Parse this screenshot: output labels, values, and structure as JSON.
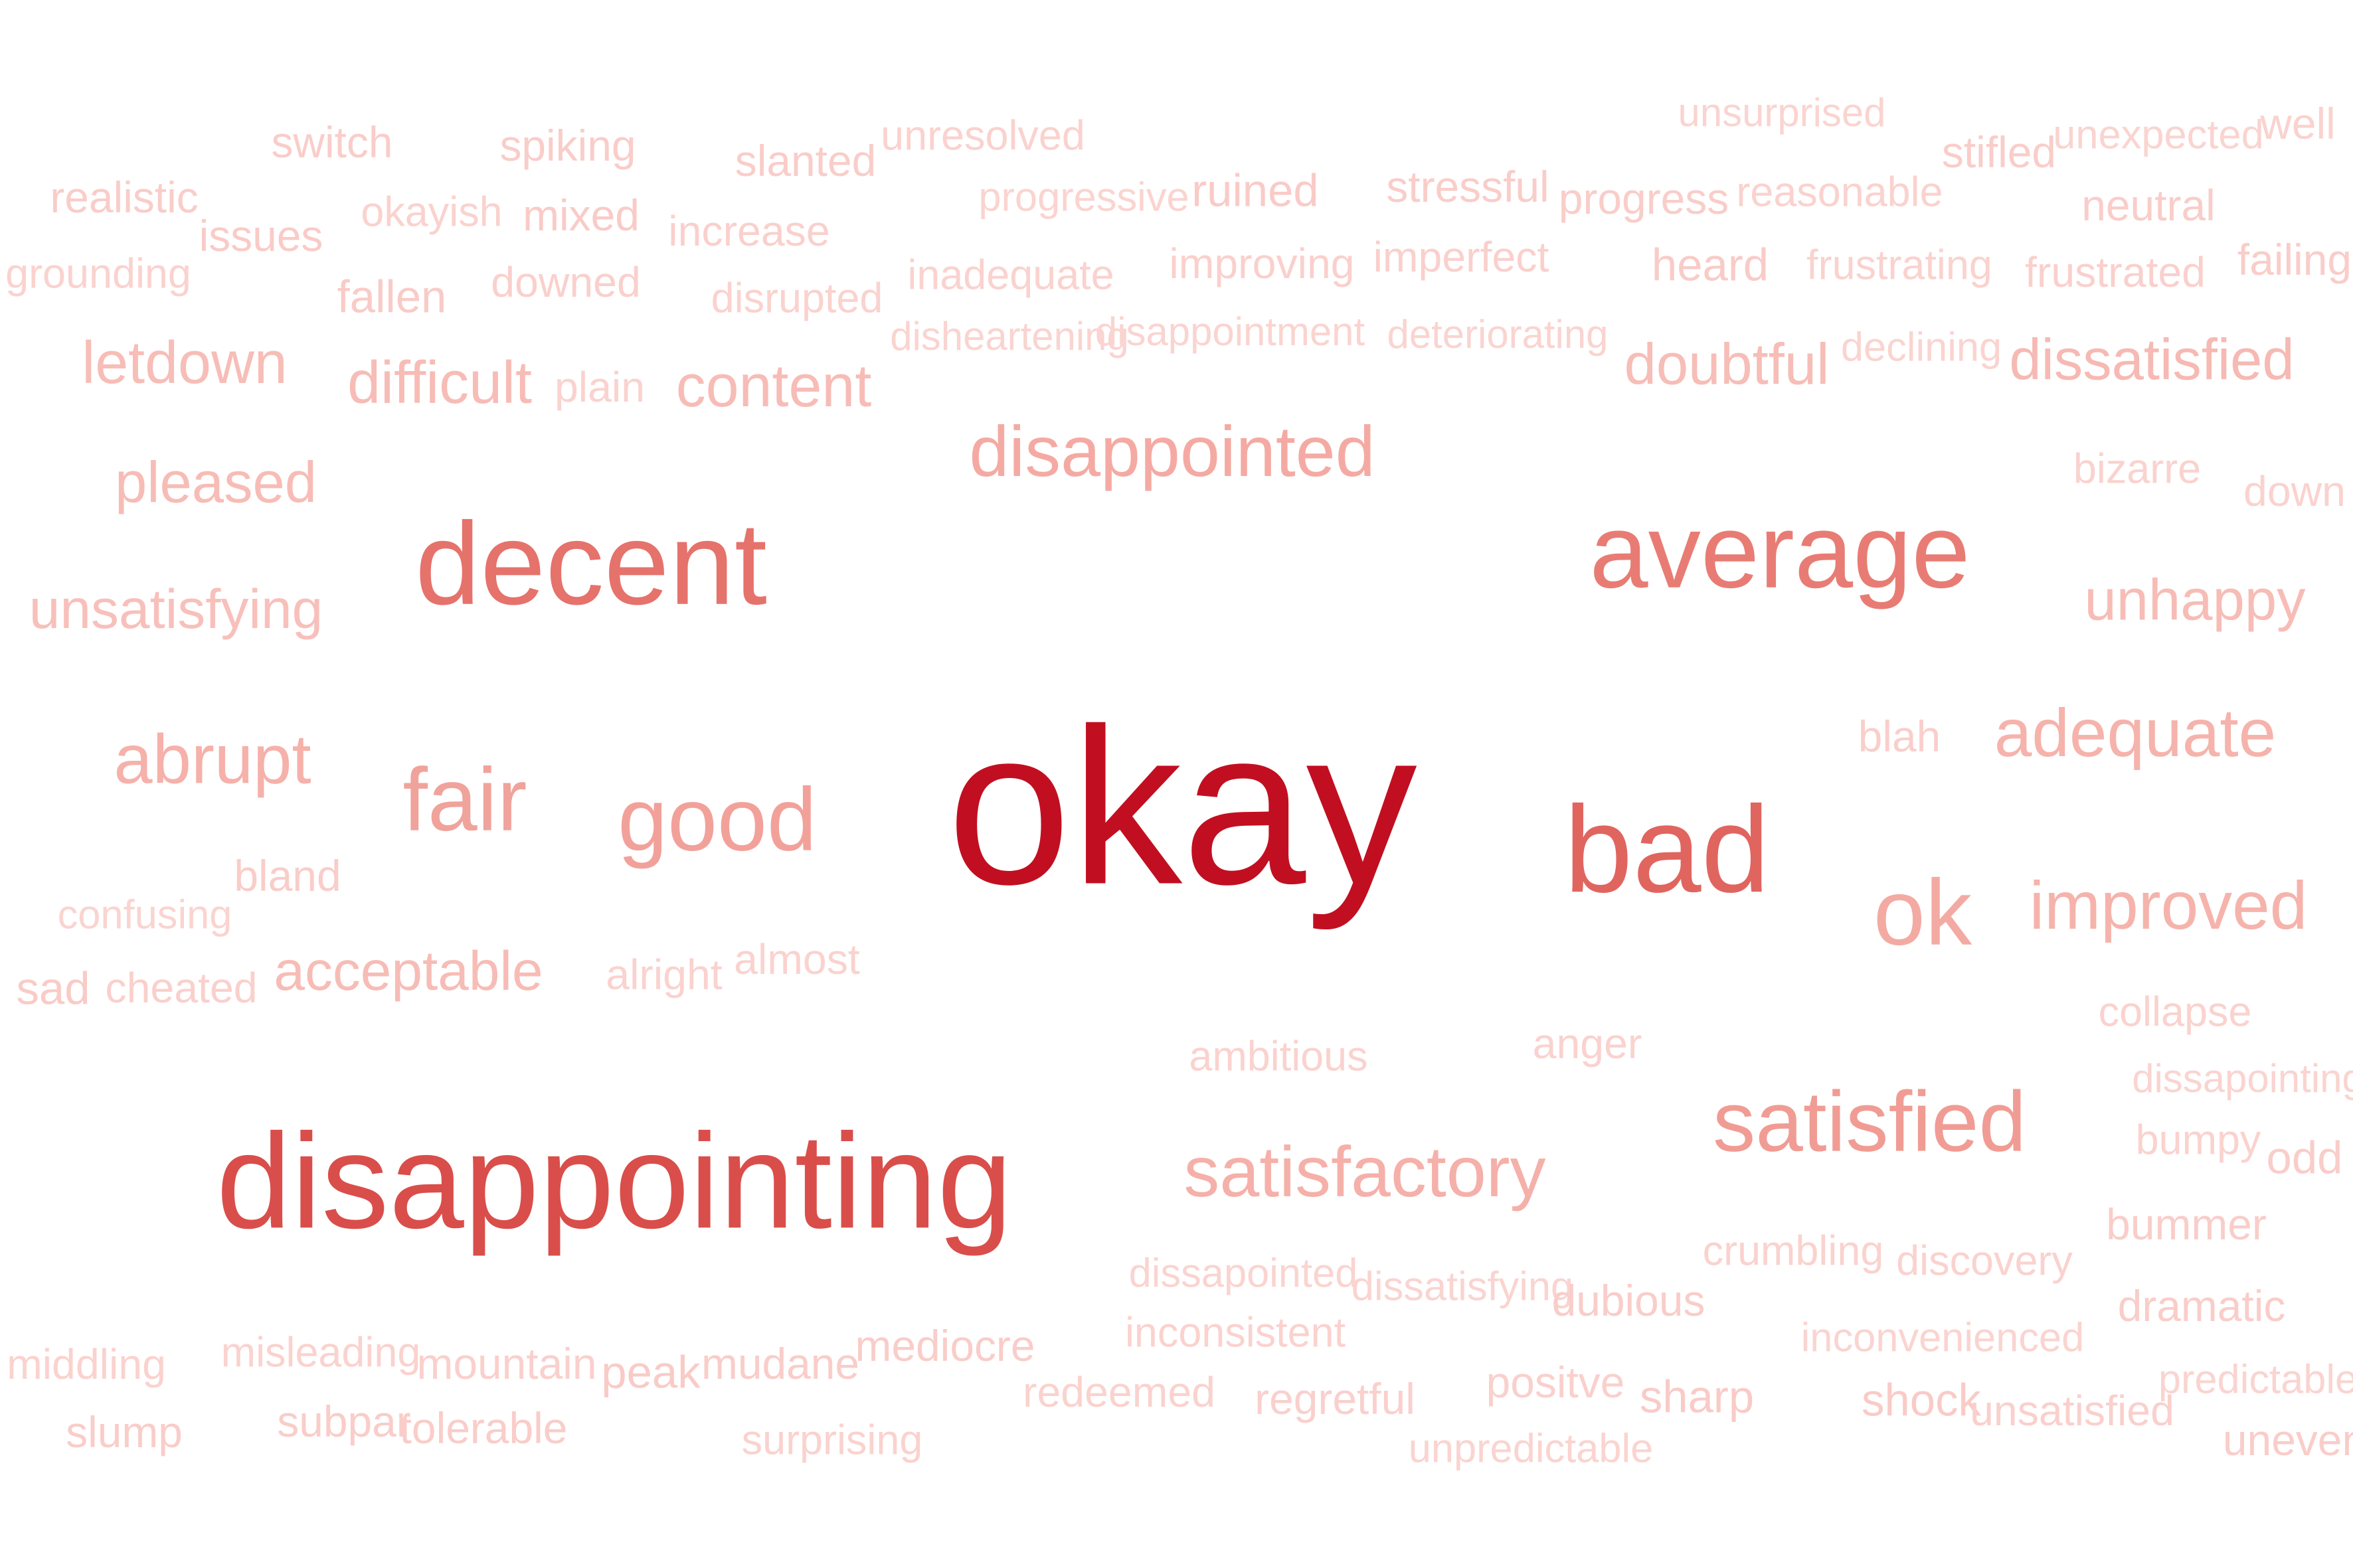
{
  "words": [
    {
      "text": "okay",
      "weight": 1.0,
      "color": "#c10f21"
    },
    {
      "text": "disappointing",
      "weight": 0.56,
      "color": "#d94e4a"
    },
    {
      "text": "bad",
      "weight": 0.5,
      "color": "#e0655f"
    },
    {
      "text": "decent",
      "weight": 0.47,
      "color": "#e6726c"
    },
    {
      "text": "average",
      "weight": 0.41,
      "color": "#e87c74"
    },
    {
      "text": "ok",
      "weight": 0.35,
      "color": "#f3aaa2"
    },
    {
      "text": "fair",
      "weight": 0.33,
      "color": "#f0a39b"
    },
    {
      "text": "good",
      "weight": 0.33,
      "color": "#f2a19a"
    },
    {
      "text": "satisfied",
      "weight": 0.31,
      "color": "#f09c94"
    },
    {
      "text": "disappointed",
      "weight": 0.24,
      "color": "#f4aaa3"
    },
    {
      "text": "satisfactory",
      "weight": 0.24,
      "color": "#f5b0a9"
    },
    {
      "text": "abrupt",
      "weight": 0.23,
      "color": "#f5b1aa"
    },
    {
      "text": "adequate",
      "weight": 0.22,
      "color": "#f5b3ac"
    },
    {
      "text": "improved",
      "weight": 0.22,
      "color": "#f5b3ac"
    },
    {
      "text": "letdown",
      "weight": 0.18,
      "color": "#f7bdb7"
    },
    {
      "text": "difficult",
      "weight": 0.18,
      "color": "#f7bcb6"
    },
    {
      "text": "content",
      "weight": 0.18,
      "color": "#f7bcb6"
    },
    {
      "text": "doubtful",
      "weight": 0.17,
      "color": "#f7bdb7"
    },
    {
      "text": "dissatisfied",
      "weight": 0.17,
      "color": "#f6b9b3"
    },
    {
      "text": "pleased",
      "weight": 0.17,
      "color": "#f7bcb6"
    },
    {
      "text": "unhappy",
      "weight": 0.17,
      "color": "#f7bcb6"
    },
    {
      "text": "unsatisfying",
      "weight": 0.16,
      "color": "#f8c0bb"
    },
    {
      "text": "acceptable",
      "weight": 0.16,
      "color": "#f7bcb6"
    },
    {
      "text": "switch",
      "weight": 0.1,
      "color": "#f9cdc9"
    },
    {
      "text": "spiking",
      "weight": 0.1,
      "color": "#f9cdc9"
    },
    {
      "text": "slanted",
      "weight": 0.1,
      "color": "#f9cdc9"
    },
    {
      "text": "unresolved",
      "weight": 0.09,
      "color": "#fad2ce"
    },
    {
      "text": "unsurprised",
      "weight": 0.08,
      "color": "#fad4d0"
    },
    {
      "text": "stifled",
      "weight": 0.1,
      "color": "#f9cdc9"
    },
    {
      "text": "unexpected",
      "weight": 0.085,
      "color": "#fad4d0"
    },
    {
      "text": "well",
      "weight": 0.1,
      "color": "#fad2ce"
    },
    {
      "text": "realistic",
      "weight": 0.1,
      "color": "#f9cdc9"
    },
    {
      "text": "issues",
      "weight": 0.1,
      "color": "#f9cbc7"
    },
    {
      "text": "okayish",
      "weight": 0.09,
      "color": "#fad2ce"
    },
    {
      "text": "mixed",
      "weight": 0.1,
      "color": "#f9cbc7"
    },
    {
      "text": "increase",
      "weight": 0.095,
      "color": "#fad0cc"
    },
    {
      "text": "progressive",
      "weight": 0.085,
      "color": "#fad4d0"
    },
    {
      "text": "ruined",
      "weight": 0.11,
      "color": "#f9cbc7"
    },
    {
      "text": "stressful",
      "weight": 0.1,
      "color": "#f9cdc9"
    },
    {
      "text": "progress",
      "weight": 0.1,
      "color": "#f9cdc9"
    },
    {
      "text": "reasonable",
      "weight": 0.09,
      "color": "#fad2ce"
    },
    {
      "text": "neutral",
      "weight": 0.1,
      "color": "#f9cdc9"
    },
    {
      "text": "grounding",
      "weight": 0.09,
      "color": "#fad2ce"
    },
    {
      "text": "fallen",
      "weight": 0.11,
      "color": "#f9cbc7"
    },
    {
      "text": "downed",
      "weight": 0.095,
      "color": "#fad0cc"
    },
    {
      "text": "disrupted",
      "weight": 0.09,
      "color": "#fad2ce"
    },
    {
      "text": "inadequate",
      "weight": 0.09,
      "color": "#fad2ce"
    },
    {
      "text": "improving",
      "weight": 0.095,
      "color": "#fad0cc"
    },
    {
      "text": "imperfect",
      "weight": 0.095,
      "color": "#fad0cc"
    },
    {
      "text": "heard",
      "weight": 0.11,
      "color": "#f9cbc7"
    },
    {
      "text": "frustrating",
      "weight": 0.09,
      "color": "#fad2ce"
    },
    {
      "text": "frustrated",
      "weight": 0.095,
      "color": "#fad0cc"
    },
    {
      "text": "failing",
      "weight": 0.1,
      "color": "#f9cdc9"
    },
    {
      "text": "disheartening",
      "weight": 0.08,
      "color": "#fad4d0"
    },
    {
      "text": "disappointment",
      "weight": 0.08,
      "color": "#fad4d0"
    },
    {
      "text": "deteriorating",
      "weight": 0.08,
      "color": "#fad4d0"
    },
    {
      "text": "declining",
      "weight": 0.085,
      "color": "#fad4d0"
    },
    {
      "text": "plain",
      "weight": 0.095,
      "color": "#fad2ce"
    },
    {
      "text": "bizarre",
      "weight": 0.09,
      "color": "#fad2ce"
    },
    {
      "text": "down",
      "weight": 0.095,
      "color": "#fad2ce"
    },
    {
      "text": "blah",
      "weight": 0.1,
      "color": "#f9cfcb"
    },
    {
      "text": "bland",
      "weight": 0.1,
      "color": "#f9cdc9"
    },
    {
      "text": "confusing",
      "weight": 0.085,
      "color": "#fad4d0"
    },
    {
      "text": "sad",
      "weight": 0.11,
      "color": "#f9cbc7"
    },
    {
      "text": "cheated",
      "weight": 0.095,
      "color": "#fad0cc"
    },
    {
      "text": "alright",
      "weight": 0.095,
      "color": "#fad2ce"
    },
    {
      "text": "almost",
      "weight": 0.095,
      "color": "#fad2ce"
    },
    {
      "text": "collapse",
      "weight": 0.09,
      "color": "#fad2ce"
    },
    {
      "text": "ambitious",
      "weight": 0.09,
      "color": "#fad2ce"
    },
    {
      "text": "anger",
      "weight": 0.095,
      "color": "#fad2ce"
    },
    {
      "text": "dissapointing",
      "weight": 0.08,
      "color": "#fad4d0"
    },
    {
      "text": "bumpy",
      "weight": 0.09,
      "color": "#fad2ce"
    },
    {
      "text": "odd",
      "weight": 0.11,
      "color": "#f9cdc9"
    },
    {
      "text": "bummer",
      "weight": 0.1,
      "color": "#f9cdc9"
    },
    {
      "text": "crumbling",
      "weight": 0.09,
      "color": "#fad2ce"
    },
    {
      "text": "discovery",
      "weight": 0.09,
      "color": "#fad2ce"
    },
    {
      "text": "dissapointed",
      "weight": 0.085,
      "color": "#fad4d0"
    },
    {
      "text": "dissatisfying",
      "weight": 0.085,
      "color": "#fad4d0"
    },
    {
      "text": "dubious",
      "weight": 0.1,
      "color": "#f9cdc9"
    },
    {
      "text": "dramatic",
      "weight": 0.1,
      "color": "#f9cdc9"
    },
    {
      "text": "inconsistent",
      "weight": 0.09,
      "color": "#fad2ce"
    },
    {
      "text": "inconvenienced",
      "weight": 0.085,
      "color": "#fad4d0"
    },
    {
      "text": "middling",
      "weight": 0.095,
      "color": "#fad2ce"
    },
    {
      "text": "misleading",
      "weight": 0.09,
      "color": "#fad2ce"
    },
    {
      "text": "mountain",
      "weight": 0.1,
      "color": "#fad0cc"
    },
    {
      "text": "peak",
      "weight": 0.11,
      "color": "#f9cbc7"
    },
    {
      "text": "mudane",
      "weight": 0.1,
      "color": "#f9cdc9"
    },
    {
      "text": "mediocre",
      "weight": 0.1,
      "color": "#f9cdc9"
    },
    {
      "text": "redeemed",
      "weight": 0.095,
      "color": "#fad2ce"
    },
    {
      "text": "regretful",
      "weight": 0.1,
      "color": "#fad0cc"
    },
    {
      "text": "positve",
      "weight": 0.1,
      "color": "#fad0cc"
    },
    {
      "text": "sharp",
      "weight": 0.11,
      "color": "#f9cbc7"
    },
    {
      "text": "shock",
      "weight": 0.11,
      "color": "#f9cbc7"
    },
    {
      "text": "unsatisfied",
      "weight": 0.095,
      "color": "#fad0cc"
    },
    {
      "text": "predictable",
      "weight": 0.085,
      "color": "#fad4d0"
    },
    {
      "text": "slump",
      "weight": 0.1,
      "color": "#f9cdc9"
    },
    {
      "text": "subpar",
      "weight": 0.1,
      "color": "#f9cdc9"
    },
    {
      "text": "tolerable",
      "weight": 0.1,
      "color": "#f9cdc9"
    },
    {
      "text": "surprising",
      "weight": 0.09,
      "color": "#fad2ce"
    },
    {
      "text": "unpredictable",
      "weight": 0.085,
      "color": "#fad4d0"
    },
    {
      "text": "uneven",
      "weight": 0.1,
      "color": "#f9cdc9"
    }
  ]
}
